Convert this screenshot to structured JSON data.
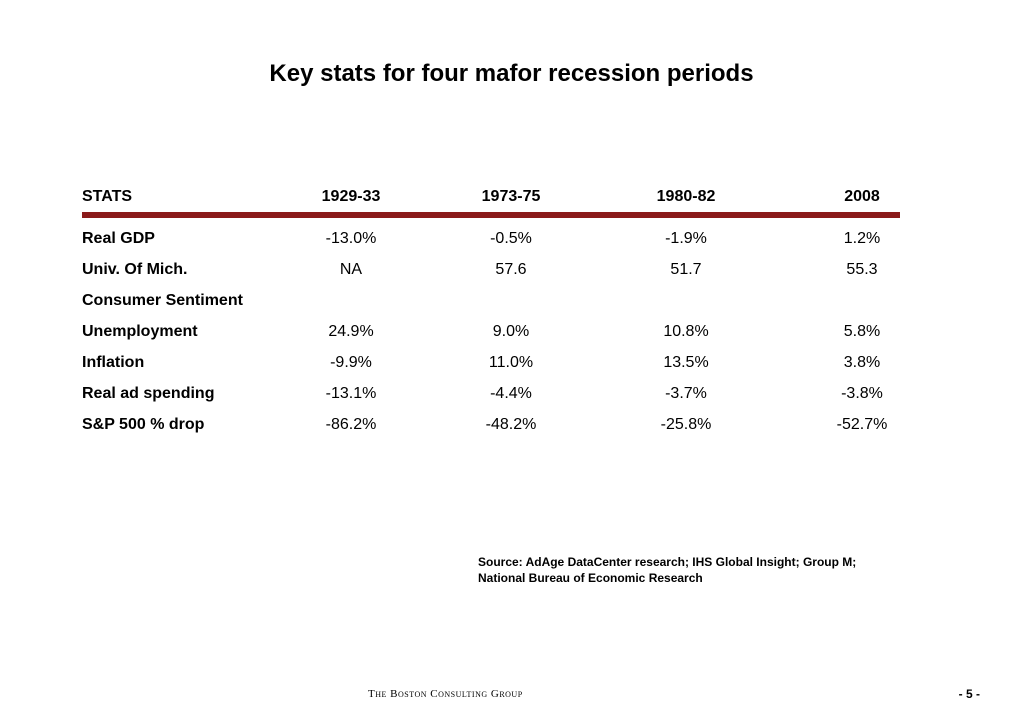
{
  "title": "Key stats for four mafor recession periods",
  "table": {
    "header": [
      "STATS",
      "1929-33",
      "1973-75",
      "1980-82",
      "2008"
    ],
    "rows": [
      {
        "label": "Real GDP",
        "values": [
          "-13.0%",
          "-0.5%",
          "-1.9%",
          "1.2%"
        ]
      },
      {
        "label": "Univ. Of Mich.",
        "values": [
          "NA",
          "57.6",
          "51.7",
          "55.3"
        ]
      },
      {
        "label": "Consumer Sentiment",
        "values": [
          "",
          "",
          "",
          ""
        ]
      },
      {
        "label": "Unemployment",
        "values": [
          "24.9%",
          "9.0%",
          "10.8%",
          "5.8%"
        ]
      },
      {
        "label": "Inflation",
        "values": [
          "-9.9%",
          "11.0%",
          "13.5%",
          "3.8%"
        ]
      },
      {
        "label": "Real ad spending",
        "values": [
          "-13.1%",
          "-4.4%",
          "-3.7%",
          "-3.8%"
        ]
      },
      {
        "label": "S&P 500 % drop",
        "values": [
          "-86.2%",
          "-48.2%",
          "-25.8%",
          "-52.7%"
        ]
      }
    ]
  },
  "source": {
    "line1": "Source: AdAge DataCenter research; IHS Global Insight; Group M;",
    "line2": "National Bureau of Economic Research"
  },
  "footer": {
    "company": "The Boston Consulting Group",
    "page_number": "- 5 -"
  },
  "colors": {
    "rule": "#8b1a1a"
  }
}
